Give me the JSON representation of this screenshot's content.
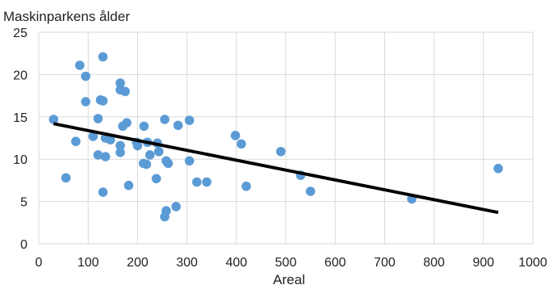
{
  "chart_data": {
    "type": "scatter",
    "title": "",
    "ylabel": "Maskinparkens ålder",
    "xlabel": "Areal",
    "xlim": [
      0,
      1000
    ],
    "ylim": [
      0,
      25
    ],
    "xticks": [
      "0",
      "100",
      "200",
      "300",
      "400",
      "500",
      "600",
      "700",
      "800",
      "900",
      "1000"
    ],
    "yticks": [
      "0",
      "5",
      "10",
      "15",
      "20",
      "25"
    ],
    "grid": true,
    "colors": {
      "points": "#5b9bd5",
      "trendline": "#000000",
      "grid": "#d9d9d9"
    },
    "points": [
      [
        30,
        14.7
      ],
      [
        55,
        7.8
      ],
      [
        75,
        12.1
      ],
      [
        83,
        21.1
      ],
      [
        95,
        19.8
      ],
      [
        95,
        16.8
      ],
      [
        110,
        12.7
      ],
      [
        120,
        14.8
      ],
      [
        120,
        10.5
      ],
      [
        125,
        17.0
      ],
      [
        130,
        16.9
      ],
      [
        130,
        22.1
      ],
      [
        130,
        6.1
      ],
      [
        135,
        12.5
      ],
      [
        135,
        10.3
      ],
      [
        145,
        12.3
      ],
      [
        165,
        11.6
      ],
      [
        165,
        10.8
      ],
      [
        165,
        18.2
      ],
      [
        165,
        19.0
      ],
      [
        170,
        13.9
      ],
      [
        175,
        18.0
      ],
      [
        178,
        14.3
      ],
      [
        182,
        6.9
      ],
      [
        198,
        12.0
      ],
      [
        200,
        11.6
      ],
      [
        212,
        9.5
      ],
      [
        213,
        13.9
      ],
      [
        218,
        9.4
      ],
      [
        220,
        12.0
      ],
      [
        225,
        10.5
      ],
      [
        238,
        7.7
      ],
      [
        240,
        11.9
      ],
      [
        243,
        10.9
      ],
      [
        255,
        14.7
      ],
      [
        255,
        3.2
      ],
      [
        258,
        9.8
      ],
      [
        258,
        3.9
      ],
      [
        262,
        9.5
      ],
      [
        278,
        4.4
      ],
      [
        282,
        14.0
      ],
      [
        305,
        14.6
      ],
      [
        305,
        9.8
      ],
      [
        320,
        7.3
      ],
      [
        340,
        7.3
      ],
      [
        398,
        12.8
      ],
      [
        410,
        11.8
      ],
      [
        420,
        6.8
      ],
      [
        490,
        10.9
      ],
      [
        530,
        8.1
      ],
      [
        550,
        6.2
      ],
      [
        755,
        5.3
      ],
      [
        930,
        8.9
      ]
    ],
    "trendline": {
      "x": [
        30,
        930
      ],
      "y": [
        14.2,
        3.7
      ]
    }
  }
}
